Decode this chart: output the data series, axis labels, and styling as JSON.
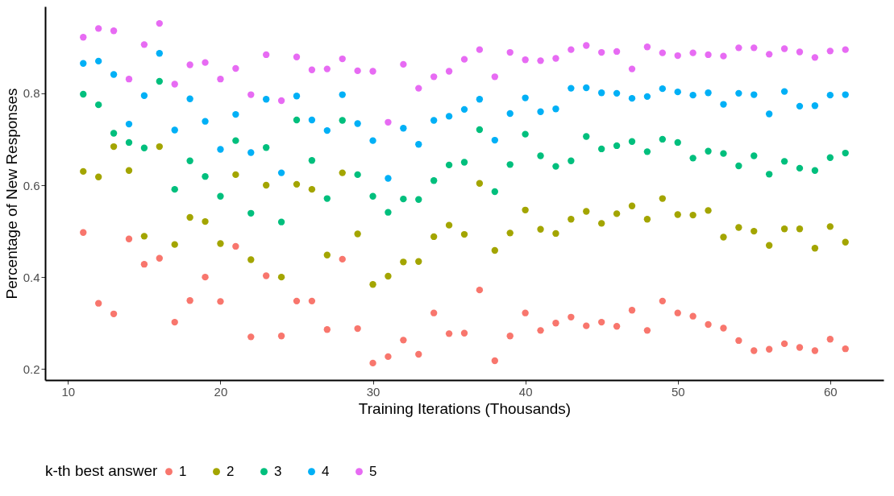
{
  "chart_data": {
    "type": "scatter",
    "xlabel": "Training Iterations (Thousands)",
    "ylabel": "Percentage of New Responses",
    "legend_title": "k-th best answer",
    "legend": "bottom",
    "grid": false,
    "marker": "circle",
    "x": [
      11,
      12,
      13,
      14,
      15,
      16,
      17,
      18,
      19,
      20,
      21,
      22,
      23,
      24,
      25,
      26,
      27,
      28,
      29,
      30,
      31,
      32,
      33,
      34,
      35,
      36,
      37,
      38,
      39,
      40,
      41,
      42,
      43,
      44,
      45,
      46,
      47,
      48,
      49,
      50,
      51,
      52,
      53,
      54,
      55,
      56,
      57,
      58,
      59,
      60,
      61
    ],
    "xlim": [
      8.5,
      63.5
    ],
    "xticks": [
      10,
      20,
      30,
      40,
      50,
      60
    ],
    "ylim": [
      0.176,
      0.989
    ],
    "yticks": [
      {
        "value": 0.2,
        "label": "0.2"
      },
      {
        "value": 0.4,
        "label": "0.4"
      },
      {
        "value": 0.6,
        "label": "0.6"
      },
      {
        "value": 0.8,
        "label": "0.8"
      }
    ],
    "series": [
      {
        "name": "1",
        "color": "#f8766d",
        "values": [
          0.497,
          0.343,
          0.32,
          0.483,
          0.428,
          0.441,
          0.302,
          0.349,
          0.4,
          0.347,
          0.467,
          0.27,
          0.403,
          0.272,
          0.348,
          0.348,
          0.286,
          0.439,
          0.288,
          0.213,
          0.227,
          0.263,
          0.232,
          0.322,
          0.277,
          0.278,
          0.372,
          0.218,
          0.272,
          0.322,
          0.284,
          0.3,
          0.313,
          0.294,
          0.302,
          0.293,
          0.328,
          0.284,
          0.348,
          0.322,
          0.315,
          0.297,
          0.289,
          0.262,
          0.24,
          0.243,
          0.255,
          0.247,
          0.24,
          0.265,
          0.244
        ]
      },
      {
        "name": "2",
        "color": "#a3a500",
        "values": [
          0.63,
          0.618,
          0.684,
          0.632,
          0.489,
          0.684,
          0.471,
          0.53,
          0.521,
          0.473,
          0.623,
          0.438,
          0.6,
          0.4,
          0.602,
          0.591,
          0.448,
          0.627,
          0.494,
          0.384,
          0.402,
          0.433,
          0.434,
          0.488,
          0.513,
          0.493,
          0.604,
          0.458,
          0.496,
          0.546,
          0.504,
          0.495,
          0.526,
          0.543,
          0.517,
          0.538,
          0.555,
          0.526,
          0.571,
          0.536,
          0.535,
          0.545,
          0.487,
          0.508,
          0.5,
          0.469,
          0.505,
          0.505,
          0.463,
          0.51,
          0.476
        ]
      },
      {
        "name": "3",
        "color": "#00bf7d",
        "values": [
          0.798,
          0.775,
          0.713,
          0.693,
          0.681,
          0.826,
          0.591,
          0.653,
          0.619,
          0.576,
          0.697,
          0.539,
          0.682,
          0.52,
          0.742,
          0.654,
          0.571,
          0.741,
          0.623,
          0.576,
          0.541,
          0.57,
          0.569,
          0.61,
          0.644,
          0.65,
          0.721,
          0.586,
          0.645,
          0.711,
          0.664,
          0.641,
          0.653,
          0.706,
          0.679,
          0.686,
          0.695,
          0.673,
          0.7,
          0.693,
          0.659,
          0.674,
          0.669,
          0.642,
          0.664,
          0.624,
          0.652,
          0.637,
          0.632,
          0.66,
          0.67
        ]
      },
      {
        "name": "4",
        "color": "#00b0f6",
        "values": [
          0.865,
          0.87,
          0.841,
          0.733,
          0.795,
          0.887,
          0.72,
          0.788,
          0.739,
          0.678,
          0.754,
          0.671,
          0.787,
          0.627,
          0.794,
          0.742,
          0.719,
          0.797,
          0.734,
          0.697,
          0.615,
          0.724,
          0.689,
          0.741,
          0.75,
          0.765,
          0.787,
          0.698,
          0.756,
          0.79,
          0.76,
          0.766,
          0.811,
          0.812,
          0.801,
          0.8,
          0.789,
          0.793,
          0.81,
          0.803,
          0.796,
          0.801,
          0.776,
          0.8,
          0.797,
          0.755,
          0.804,
          0.772,
          0.773,
          0.796,
          0.797
        ]
      },
      {
        "name": "5",
        "color": "#e76bf3",
        "values": [
          0.922,
          0.941,
          0.936,
          0.831,
          0.906,
          0.952,
          0.82,
          0.862,
          0.867,
          0.831,
          0.854,
          0.797,
          0.884,
          0.784,
          0.879,
          0.851,
          0.853,
          0.875,
          0.849,
          0.848,
          0.737,
          0.863,
          0.811,
          0.836,
          0.848,
          0.874,
          0.895,
          0.836,
          0.889,
          0.873,
          0.871,
          0.876,
          0.895,
          0.904,
          0.889,
          0.891,
          0.853,
          0.901,
          0.888,
          0.882,
          0.888,
          0.884,
          0.881,
          0.899,
          0.899,
          0.885,
          0.897,
          0.89,
          0.878,
          0.892,
          0.895
        ]
      }
    ]
  }
}
